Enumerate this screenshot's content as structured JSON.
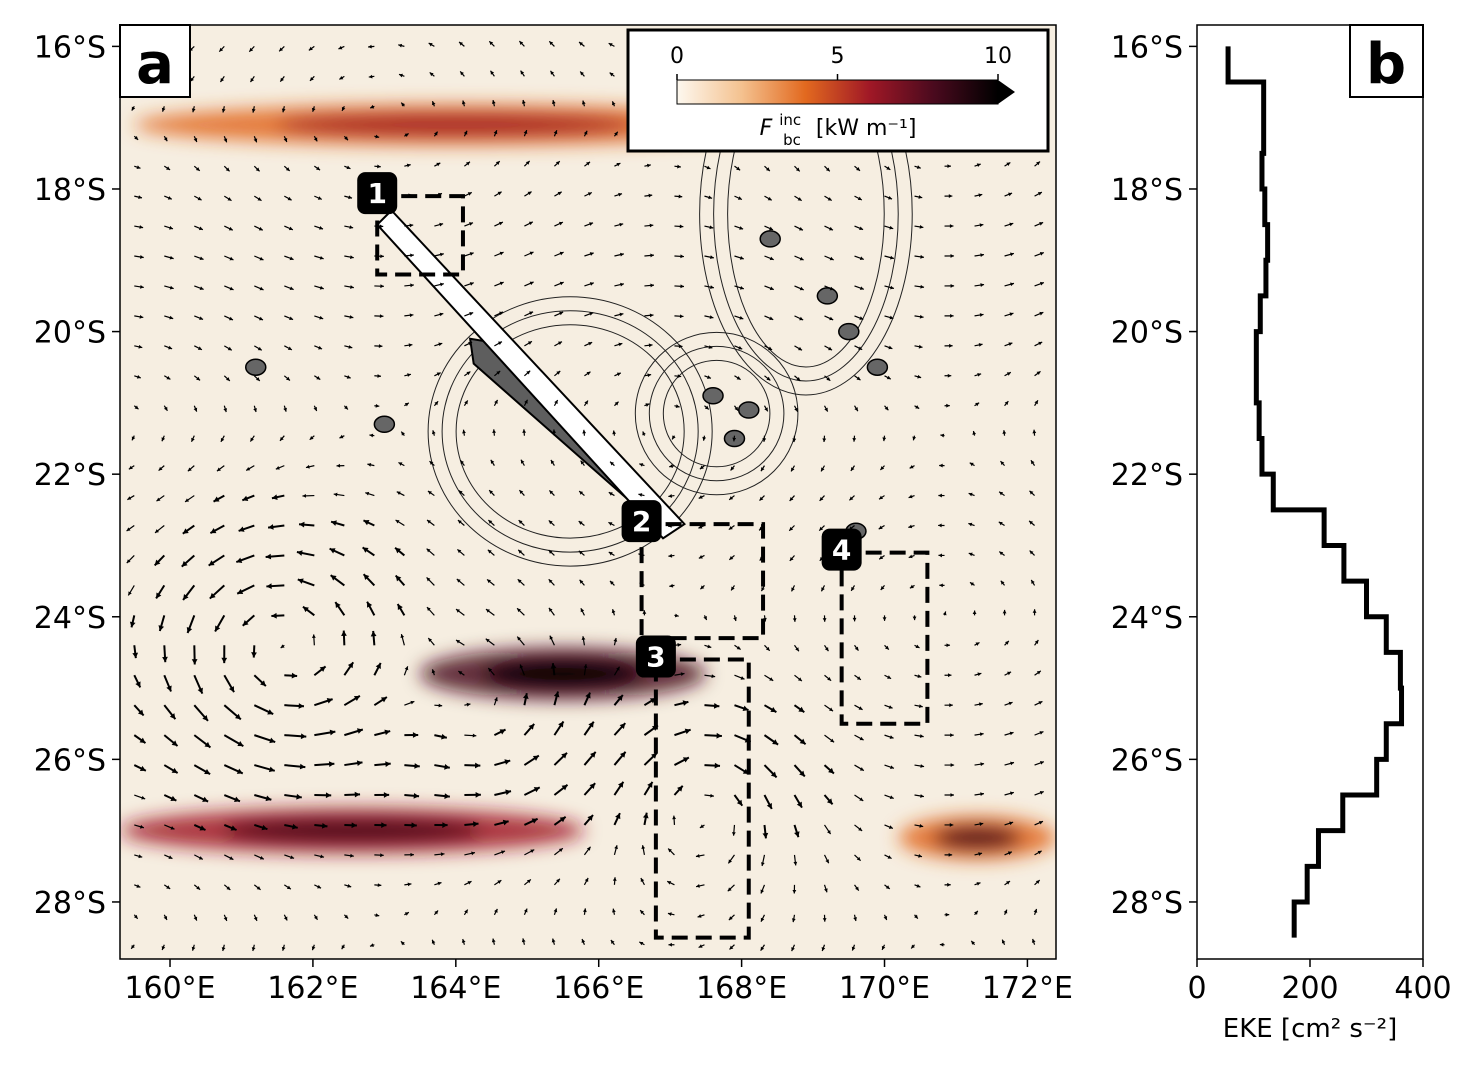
{
  "chart_data": [
    {
      "type": "heatmap",
      "panel_label": "a",
      "x_ticks": [
        "160°E",
        "162°E",
        "164°E",
        "166°E",
        "168°E",
        "170°E",
        "172°E"
      ],
      "x_tick_values": [
        160,
        162,
        164,
        166,
        168,
        170,
        172
      ],
      "y_ticks": [
        "16°S",
        "18°S",
        "20°S",
        "22°S",
        "24°S",
        "26°S",
        "28°S"
      ],
      "y_tick_values": [
        -16,
        -18,
        -20,
        -22,
        -24,
        -26,
        -28
      ],
      "xlim": [
        159.3,
        172.4
      ],
      "ylim": [
        -28.8,
        -15.7
      ],
      "colorbar": {
        "label_main": "F",
        "label_sup": "inc",
        "label_sub": "bc",
        "label_units": "[kW m⁻¹]",
        "ticks": [
          "0",
          "5",
          "10"
        ],
        "tick_values": [
          0,
          5,
          10
        ],
        "range": [
          0,
          10
        ],
        "extend": "max",
        "colors": [
          "#fdf8ef",
          "#f4c290",
          "#e2691f",
          "#a01826",
          "#4a0a1e",
          "#000000"
        ]
      },
      "bands": [
        {
          "name": "northern band",
          "y_lat": -17.1,
          "x_range": [
            159.5,
            168.5
          ],
          "intensity": 0.3
        },
        {
          "name": "southern main band",
          "y_lat": -24.8,
          "x_range": [
            163.5,
            167.5
          ],
          "intensity": 0.8
        },
        {
          "name": "southwest band",
          "y_lat": -27.0,
          "x_range": [
            159.3,
            165.8
          ],
          "intensity": 0.5
        },
        {
          "name": "southeast band",
          "y_lat": -27.1,
          "x_range": [
            170.2,
            172.4
          ],
          "intensity": 0.45
        }
      ],
      "regions": [
        {
          "id": "1",
          "lon": [
            162.9,
            164.1
          ],
          "lat": [
            -19.2,
            -18.1
          ]
        },
        {
          "id": "2",
          "lon": [
            166.6,
            168.3
          ],
          "lat": [
            -24.3,
            -22.7
          ]
        },
        {
          "id": "3",
          "lon": [
            166.8,
            168.1
          ],
          "lat": [
            -28.5,
            -24.6
          ]
        },
        {
          "id": "4",
          "lon": [
            169.4,
            170.6
          ],
          "lat": [
            -25.5,
            -23.1
          ]
        }
      ],
      "land": [
        {
          "name": "Grande Terre",
          "lon": [
            164.2,
            167.0
          ],
          "lat": [
            -22.7,
            -20.1
          ]
        },
        {
          "name": "Loyalty Islands",
          "lon": [
            167.1,
            168.2
          ],
          "lat": [
            -21.7,
            -20.6
          ]
        },
        {
          "name": "Vanuatu islands",
          "lon": [
            168.0,
            169.8
          ],
          "lat": [
            -20.3,
            -16.4
          ]
        }
      ],
      "vectors": "surface velocity arrows",
      "contours": "bathymetry contours"
    },
    {
      "type": "line",
      "panel_label": "b",
      "xlabel": "EKE [cm² s⁻²]",
      "x_ticks": [
        "0",
        "200",
        "400"
      ],
      "x_tick_values": [
        0,
        200,
        400
      ],
      "xlim": [
        0,
        400
      ],
      "y_ticks": [
        "16°S",
        "18°S",
        "20°S",
        "22°S",
        "24°S",
        "26°S",
        "28°S"
      ],
      "y_tick_values": [
        -16,
        -18,
        -20,
        -22,
        -24,
        -26,
        -28
      ],
      "ylim": [
        -28.8,
        -15.7
      ],
      "step_profile": [
        {
          "lat_top": -16.0,
          "lat_bottom": -16.5,
          "eke": 55
        },
        {
          "lat_top": -16.5,
          "lat_bottom": -17.5,
          "eke": 118
        },
        {
          "lat_top": -17.5,
          "lat_bottom": -18.0,
          "eke": 115
        },
        {
          "lat_top": -18.0,
          "lat_bottom": -18.5,
          "eke": 120
        },
        {
          "lat_top": -18.5,
          "lat_bottom": -19.0,
          "eke": 125
        },
        {
          "lat_top": -19.0,
          "lat_bottom": -19.5,
          "eke": 122
        },
        {
          "lat_top": -19.5,
          "lat_bottom": -20.0,
          "eke": 112
        },
        {
          "lat_top": -20.0,
          "lat_bottom": -21.0,
          "eke": 105
        },
        {
          "lat_top": -21.0,
          "lat_bottom": -21.5,
          "eke": 110
        },
        {
          "lat_top": -21.5,
          "lat_bottom": -22.0,
          "eke": 115
        },
        {
          "lat_top": -22.0,
          "lat_bottom": -22.5,
          "eke": 135
        },
        {
          "lat_top": -22.5,
          "lat_bottom": -23.0,
          "eke": 225
        },
        {
          "lat_top": -23.0,
          "lat_bottom": -23.5,
          "eke": 260
        },
        {
          "lat_top": -23.5,
          "lat_bottom": -24.0,
          "eke": 300
        },
        {
          "lat_top": -24.0,
          "lat_bottom": -24.5,
          "eke": 335
        },
        {
          "lat_top": -24.5,
          "lat_bottom": -25.0,
          "eke": 360
        },
        {
          "lat_top": -25.0,
          "lat_bottom": -25.5,
          "eke": 362
        },
        {
          "lat_top": -25.5,
          "lat_bottom": -26.0,
          "eke": 335
        },
        {
          "lat_top": -26.0,
          "lat_bottom": -26.5,
          "eke": 318
        },
        {
          "lat_top": -26.5,
          "lat_bottom": -27.0,
          "eke": 258
        },
        {
          "lat_top": -27.0,
          "lat_bottom": -27.5,
          "eke": 215
        },
        {
          "lat_top": -27.5,
          "lat_bottom": -28.0,
          "eke": 195
        },
        {
          "lat_top": -28.0,
          "lat_bottom": -28.5,
          "eke": 172
        }
      ]
    }
  ]
}
